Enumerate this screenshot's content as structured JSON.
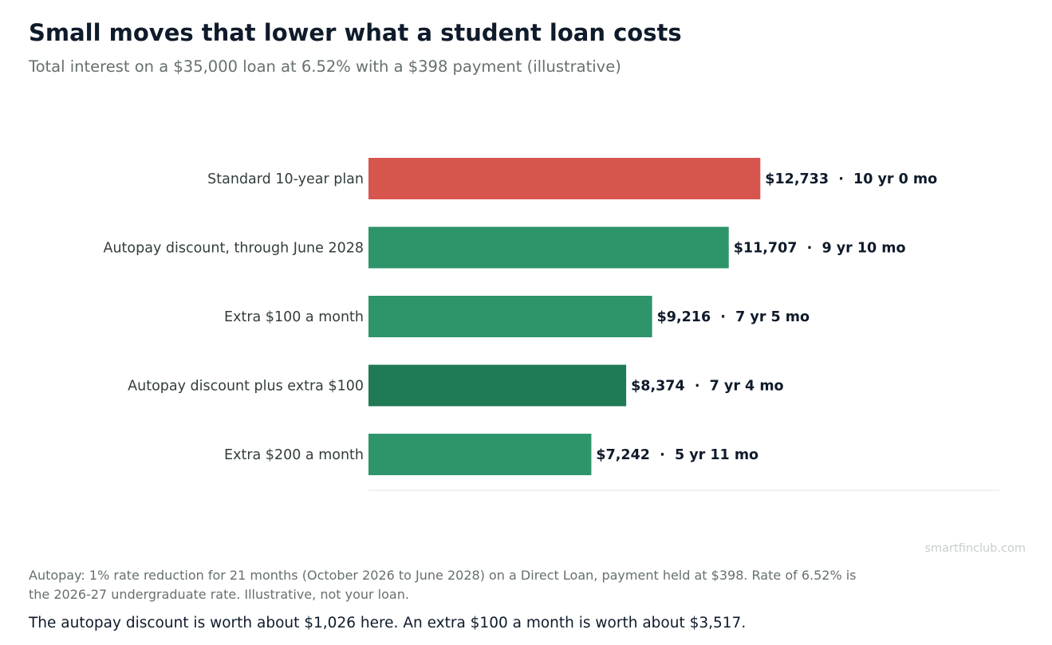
{
  "header": {
    "title": "Small moves that lower what a student loan costs",
    "subtitle": "Total interest on a $35,000 loan at 6.52% with a $398 payment (illustrative)"
  },
  "chart_data": {
    "type": "bar",
    "orientation": "horizontal",
    "categories": [
      "Standard 10-year plan",
      "Autopay discount, through June 2028",
      "Extra $100 a month",
      "Autopay discount plus extra $100",
      "Extra $200 a month"
    ],
    "values": [
      12733,
      11707,
      9216,
      8374,
      7242
    ],
    "value_labels": [
      "$12,733  ·  10 yr 0 mo",
      "$11,707  ·  9 yr 10 mo",
      "$9,216  ·  7 yr 5 mo",
      "$8,374  ·  7 yr 4 mo",
      "$7,242  ·  5 yr 11 mo"
    ],
    "bar_colors": [
      "#d6554d",
      "#2e946a",
      "#2e946a",
      "#1f7a55",
      "#2e946a"
    ],
    "xlim": [
      0,
      20500
    ],
    "grid": false,
    "legend": "none"
  },
  "watermark": "smartfinclub.com",
  "footnote": "Autopay: 1% rate reduction for 21 months (October 2026 to June 2028) on a Direct Loan, payment held at $398. Rate of 6.52% is the 2026-27 undergraduate rate. Illustrative, not your loan.",
  "takeaway": "The autopay discount is worth about $1,026 here. An extra $100 a month is worth about $3,517."
}
